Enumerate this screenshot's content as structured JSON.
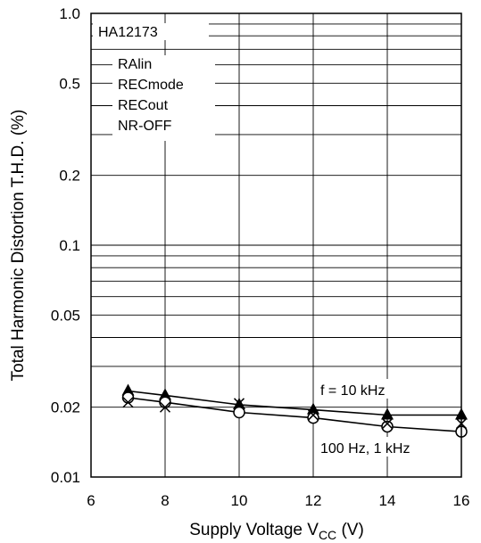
{
  "chart_data": {
    "type": "line",
    "title": "",
    "xlabel": "Supply Voltage V",
    "xlabel_sub": "CC",
    "xlabel_unit": " (V)",
    "ylabel": "Total Harmonic Distortion T.H.D. (%)",
    "y_scale": "log",
    "xlim": [
      6,
      16
    ],
    "ylim": [
      0.01,
      1.0
    ],
    "grid": true,
    "x_ticks": [
      "6",
      "8",
      "10",
      "12",
      "14",
      "16"
    ],
    "y_ticks": [
      {
        "value": 1.0,
        "label": "1.0"
      },
      {
        "value": 0.5,
        "label": "0.5"
      },
      {
        "value": 0.2,
        "label": "0.2"
      },
      {
        "value": 0.1,
        "label": "0.1"
      },
      {
        "value": 0.05,
        "label": "0.05"
      },
      {
        "value": 0.02,
        "label": "0.02"
      },
      {
        "value": 0.01,
        "label": "0.01"
      }
    ],
    "annotations": {
      "device": "HA12173",
      "conditions": [
        "RAlin",
        "RECmode",
        "RECout",
        "NR-OFF"
      ],
      "f10k_label": "f = 10 kHz",
      "low_label": "100 Hz, 1 kHz"
    },
    "series": [
      {
        "name": "f = 10 kHz",
        "marker": "filled-triangle",
        "x": [
          7,
          8,
          10,
          12,
          14,
          16
        ],
        "y": [
          0.0235,
          0.0225,
          0.0205,
          0.0195,
          0.0185,
          0.0185
        ]
      },
      {
        "name": "100 Hz",
        "marker": "open-circle",
        "x": [
          7,
          8,
          10,
          12,
          14,
          16
        ],
        "y": [
          0.022,
          0.021,
          0.019,
          0.018,
          0.0165,
          0.0157
        ]
      },
      {
        "name": "1 kHz",
        "marker": "x",
        "x": [
          7,
          8,
          10,
          12,
          14,
          16
        ],
        "y": [
          0.021,
          0.02,
          0.0208,
          0.0185,
          0.017,
          0.017
        ]
      }
    ]
  }
}
